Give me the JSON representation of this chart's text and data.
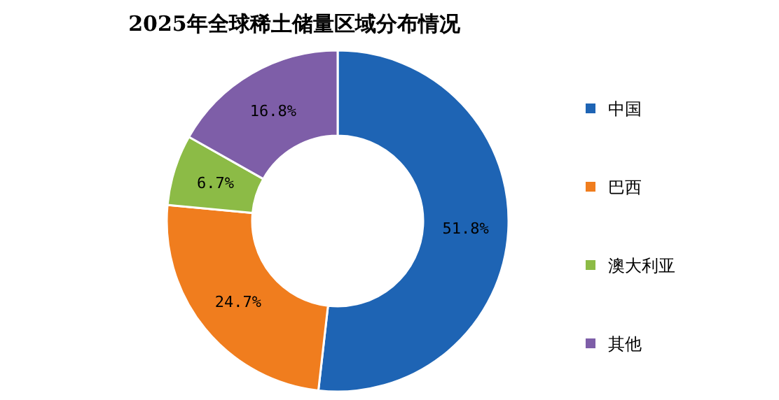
{
  "chart_data": {
    "type": "donut",
    "title": "2025年全球稀土储量区域分布情况",
    "categories": [
      "中国",
      "巴西",
      "澳大利亚",
      "其他"
    ],
    "values": [
      51.8,
      24.7,
      6.7,
      16.8
    ],
    "colors": [
      "#1e64b4",
      "#f07d1e",
      "#8cbb46",
      "#7e5ea8"
    ],
    "value_labels": [
      "51.8%",
      "24.7%",
      "6.7%",
      "16.8%"
    ],
    "legend": "right"
  }
}
